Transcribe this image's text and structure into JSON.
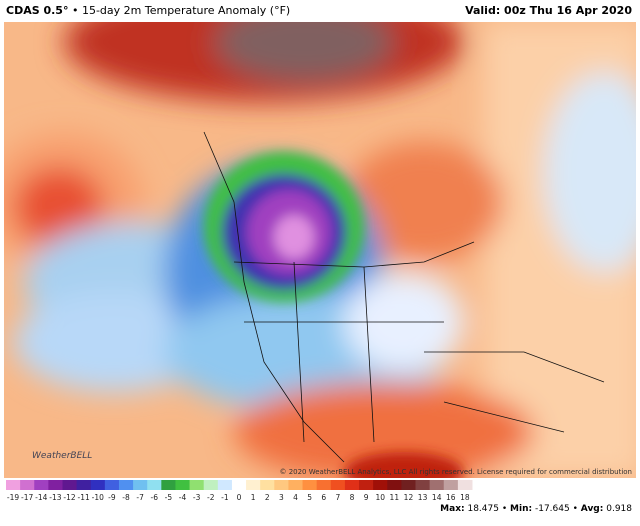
{
  "header": {
    "title": "CDAS 0.5°",
    "subtitle": "• 15-day 2m Temperature Anomaly (°F)",
    "valid": "Valid: 00z Thu 16 Apr 2020"
  },
  "map": {
    "logo": "WeatherBELL",
    "copyright": "© 2020 WeatherBELL Analytics, LLC All rights reserved. License required for commercial distribution"
  },
  "colorbar": {
    "labels": [
      -19,
      -17,
      -14,
      -13,
      -12,
      -11,
      -10,
      -9,
      -8,
      -7,
      -6,
      -5,
      -4,
      -3,
      -2,
      -1,
      0,
      1,
      2,
      3,
      4,
      5,
      6,
      7,
      8,
      9,
      10,
      11,
      12,
      13,
      14,
      16,
      18
    ],
    "colors": [
      "#f0a0e0",
      "#d070d0",
      "#a040c0",
      "#8020a0",
      "#601890",
      "#4020a0",
      "#3030c0",
      "#4060e0",
      "#5090f0",
      "#70c0f0",
      "#90e0f0",
      "#30a040",
      "#40c040",
      "#90e070",
      "#c0f0c0",
      "#d0e8ff",
      "#ffffff",
      "#fff0d0",
      "#ffe0a0",
      "#ffc880",
      "#ffb060",
      "#ff9040",
      "#f87030",
      "#f05020",
      "#e03018",
      "#c02010",
      "#a01008",
      "#801010",
      "#702020",
      "#804040",
      "#a07070",
      "#c0a0a0",
      "#f0e0e0"
    ]
  },
  "stats": {
    "separator": "•",
    "items": [
      {
        "label": "Max:",
        "value": 18.475
      },
      {
        "label": "Min:",
        "value": -17.645
      },
      {
        "label": "Avg:",
        "value": 0.918
      }
    ]
  }
}
